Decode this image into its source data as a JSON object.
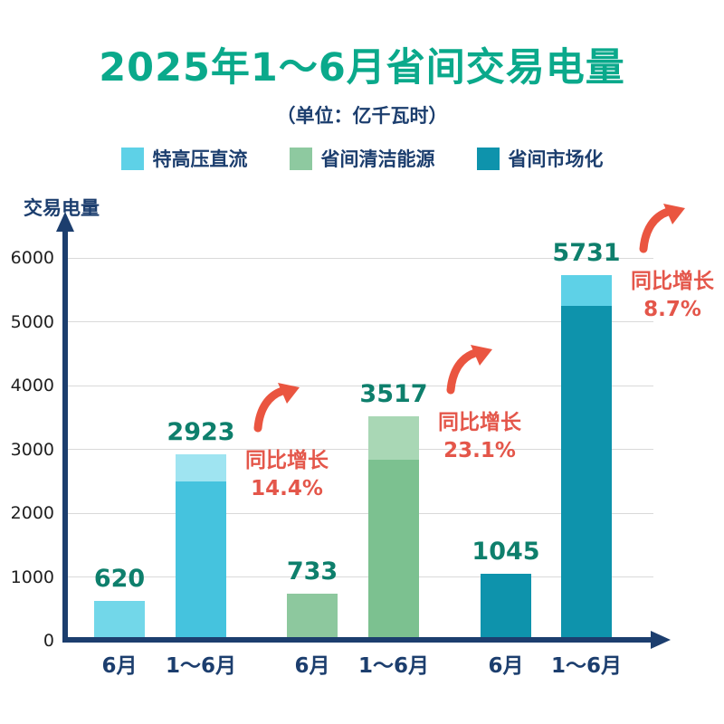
{
  "header": {
    "title": "2025年1～6月省间交易电量",
    "subtitle": "（单位：亿千瓦时）"
  },
  "legend": [
    {
      "label": "特高压直流",
      "color": "#5ed1e7"
    },
    {
      "label": "省间清洁能源",
      "color": "#8ec9a0"
    },
    {
      "label": "省间市场化",
      "color": "#0e93ac"
    }
  ],
  "axis": {
    "y_title": "交易电量",
    "y_ticks": [
      0,
      1000,
      2000,
      3000,
      4000,
      5000,
      6000
    ],
    "axis_color": "#1c3e6e"
  },
  "colors": {
    "title": "#0aa98b",
    "value_label": "#0e7f6c",
    "growth_annotation": "#e4564a",
    "gridline": "#d9d9d9"
  },
  "chart_data": {
    "type": "bar",
    "title": "2025年1～6月省间交易电量",
    "unit": "亿千瓦时",
    "ylabel": "交易电量",
    "ylim": [
      0,
      6000
    ],
    "grid": true,
    "legend_position": "top",
    "categories": [
      "6月",
      "1～6月",
      "6月",
      "1～6月",
      "6月",
      "1～6月"
    ],
    "series": [
      {
        "name": "特高压直流",
        "values": [
          620,
          2923
        ],
        "color": "#5ed1e7"
      },
      {
        "name": "省间清洁能源",
        "values": [
          733,
          3517
        ],
        "color": "#8ec9a0"
      },
      {
        "name": "省间市场化",
        "values": [
          1045,
          5731
        ],
        "color": "#0e93ac"
      }
    ],
    "bars": [
      {
        "category": "6月",
        "series": "特高压直流",
        "value": 620,
        "color": "#72d7e9",
        "cap_units": 0
      },
      {
        "category": "1～6月",
        "series": "特高压直流",
        "value": 2923,
        "color": "#45c3de",
        "cap_color": "#9fe4f1",
        "cap_units": 430,
        "growth_label": "同比增长",
        "growth_pct": "14.4%"
      },
      {
        "category": "6月",
        "series": "省间清洁能源",
        "value": 733,
        "color": "#8dc89e",
        "cap_units": 0
      },
      {
        "category": "1～6月",
        "series": "省间清洁能源",
        "value": 3517,
        "color": "#7cc190",
        "cap_color": "#a9d7b5",
        "cap_units": 680,
        "growth_label": "同比增长",
        "growth_pct": "23.1%"
      },
      {
        "category": "6月",
        "series": "省间市场化",
        "value": 1045,
        "color": "#0e93ac",
        "cap_units": 0
      },
      {
        "category": "1～6月",
        "series": "省间市场化",
        "value": 5731,
        "color": "#0e93ac",
        "cap_color": "#5ed1e7",
        "cap_units": 480,
        "growth_label": "同比增长",
        "growth_pct": "8.7%"
      }
    ],
    "annotations": [
      {
        "text": "同比增长 14.4%",
        "target_value": 2923
      },
      {
        "text": "同比增长 23.1%",
        "target_value": 3517
      },
      {
        "text": "同比增长 8.7%",
        "target_value": 5731
      }
    ]
  }
}
